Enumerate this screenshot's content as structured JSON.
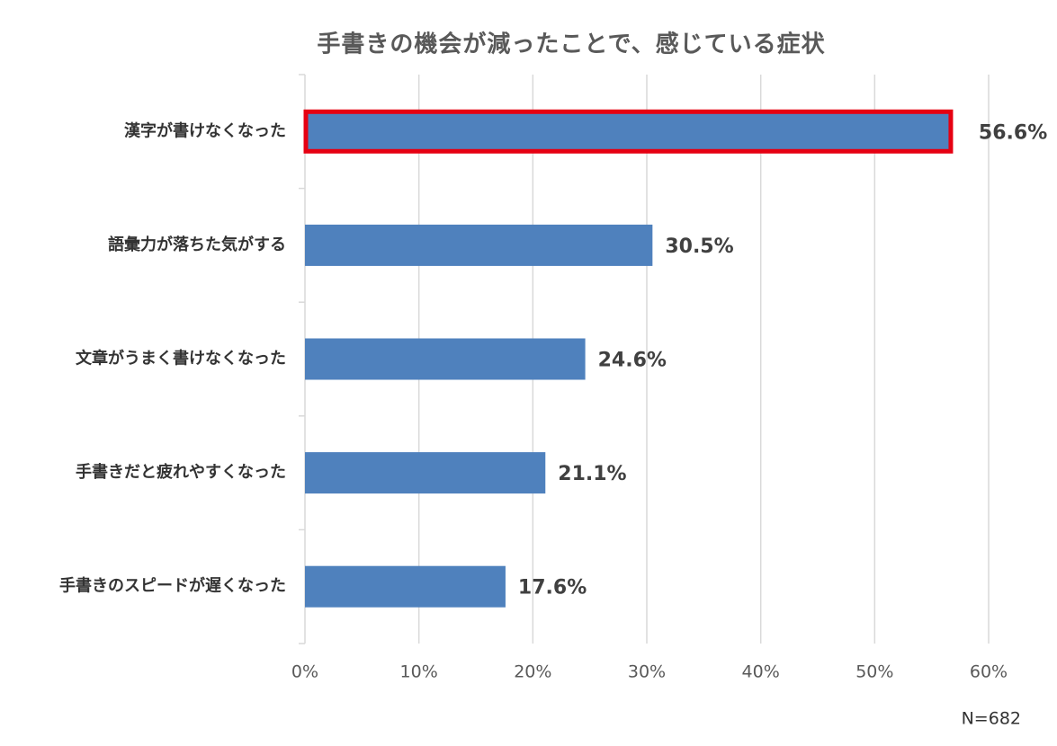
{
  "chart_data": {
    "type": "bar",
    "orientation": "horizontal",
    "title": "手書きの機会が減ったことで、感じている症状",
    "categories": [
      "漢字が書けなくなった",
      "語彙力が落ちた気がする",
      "文章がうまく書けなくなった",
      "手書きだと疲れやすくなった",
      "手書きのスピードが遅くなった"
    ],
    "values": [
      56.6,
      30.5,
      24.6,
      21.1,
      17.6
    ],
    "value_labels": [
      "56.6%",
      "30.5%",
      "24.6%",
      "21.1%",
      "17.6%"
    ],
    "color": "#4f81bd",
    "highlight_index": 0,
    "highlight_color": "#e60012",
    "xlim": [
      0,
      60
    ],
    "xticks": [
      {
        "value": 0,
        "label": "0%"
      },
      {
        "value": 10,
        "label": "10%"
      },
      {
        "value": 20,
        "label": "20%"
      },
      {
        "value": 30,
        "label": "30%"
      },
      {
        "value": 40,
        "label": "40%"
      },
      {
        "value": 50,
        "label": "50%"
      },
      {
        "value": 60,
        "label": "60%"
      }
    ],
    "grid": true,
    "note": "N=682"
  }
}
